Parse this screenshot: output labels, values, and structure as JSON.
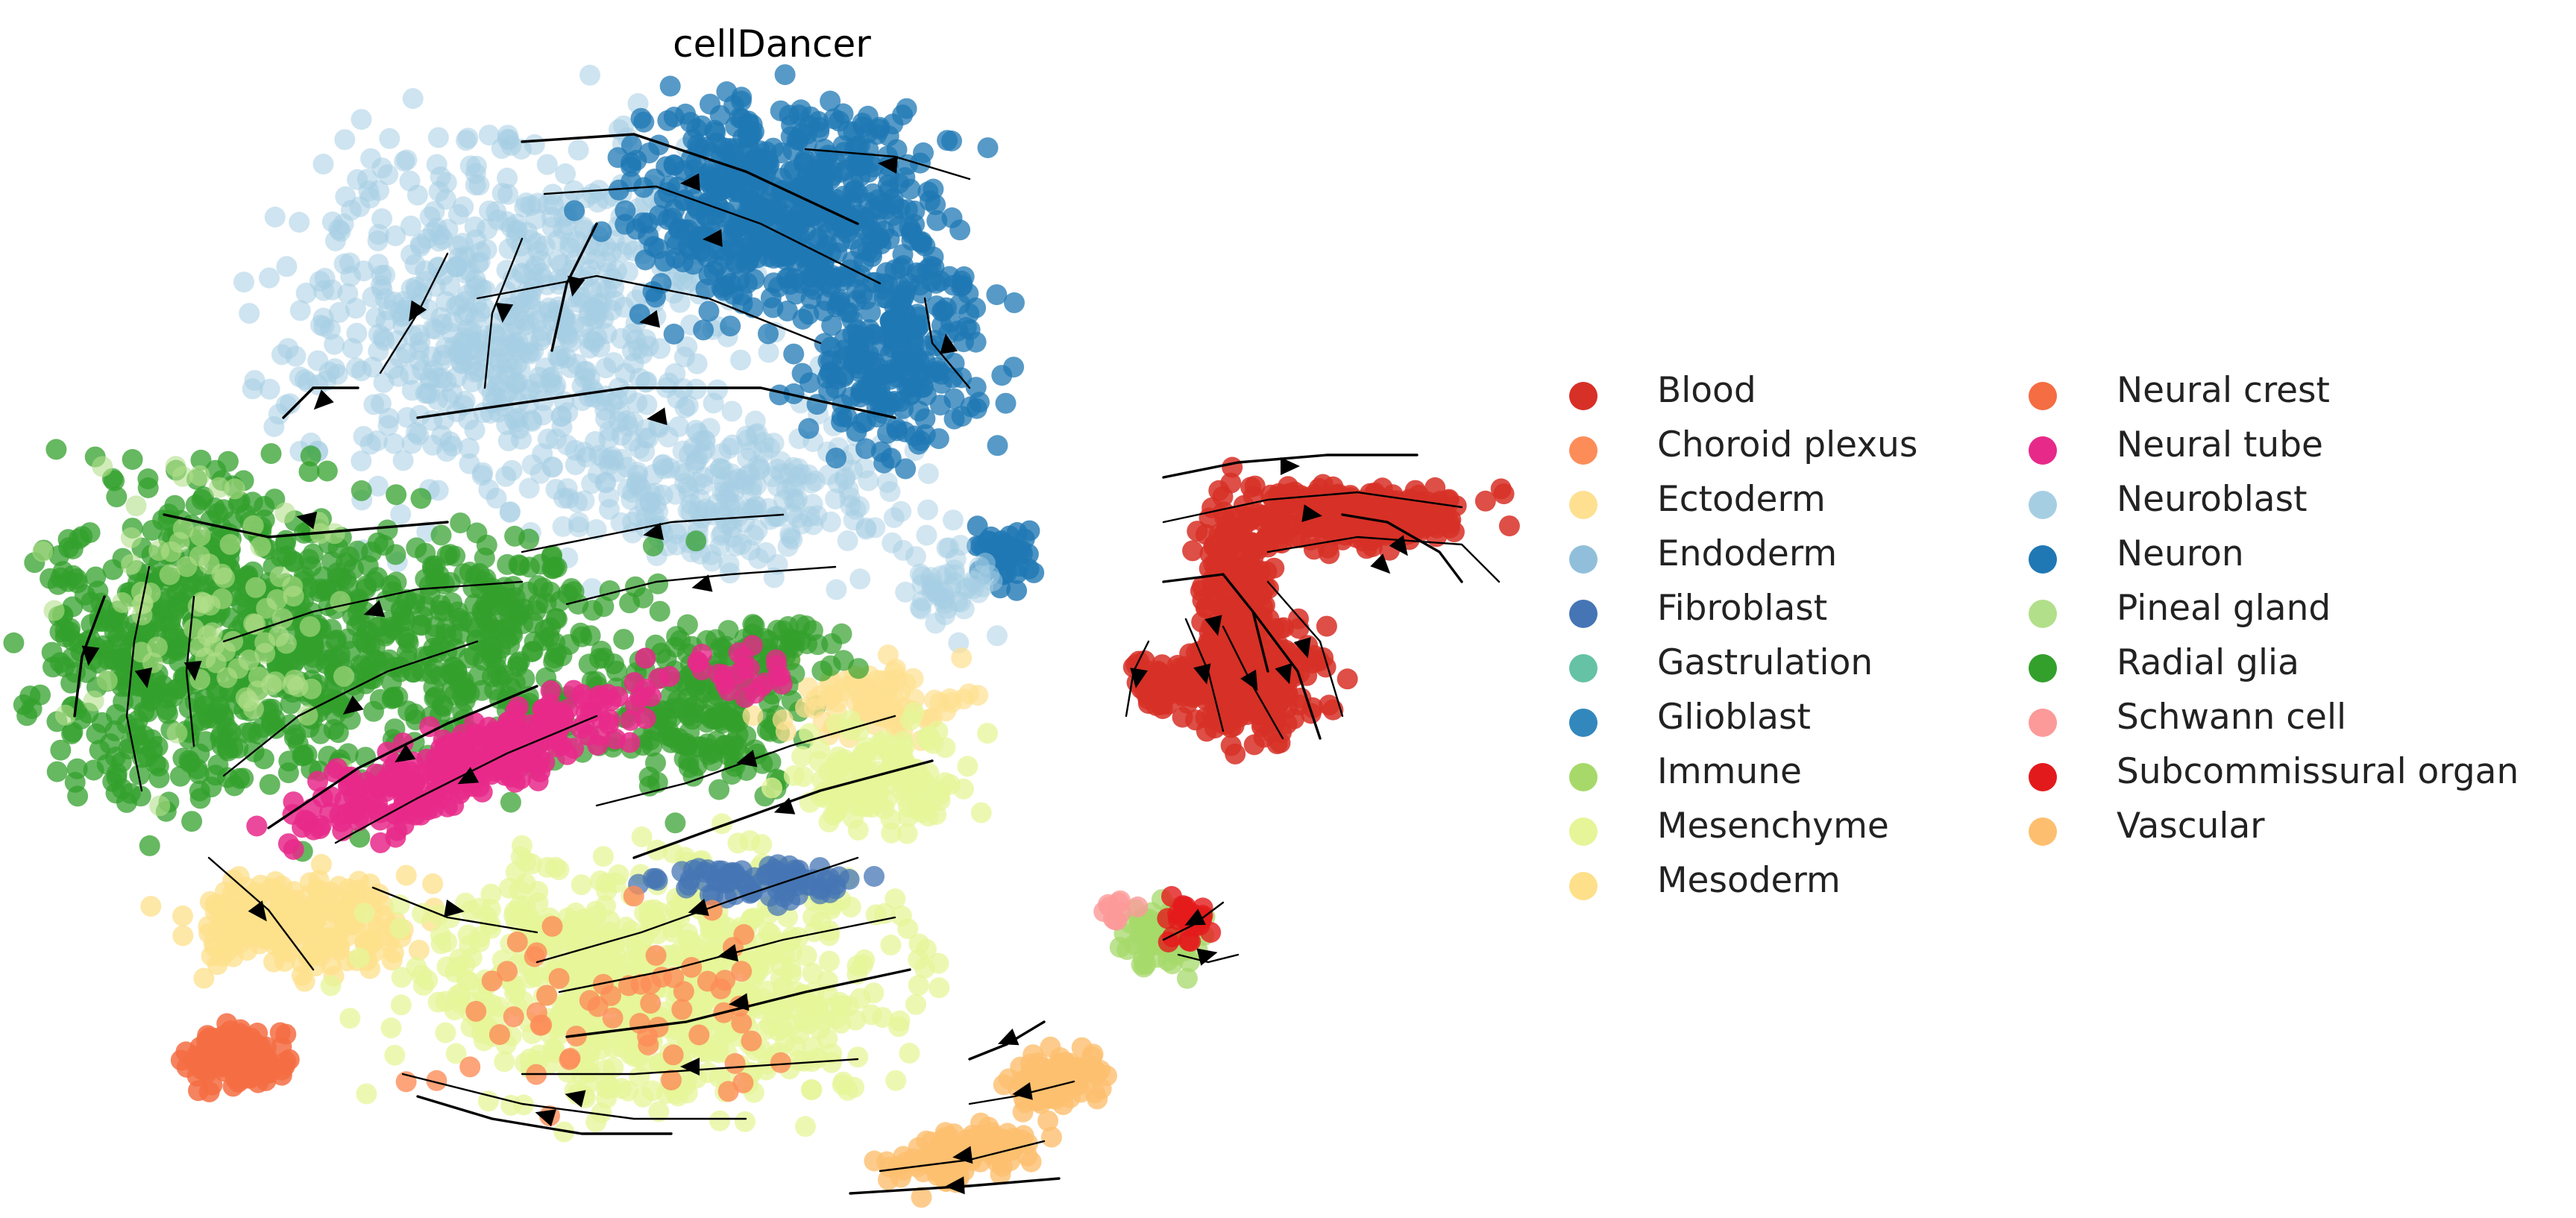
{
  "chart_data": {
    "type": "scatter",
    "title": "cellDancer",
    "xlabel": "",
    "ylabel": "",
    "grid": false,
    "axes_visible": false,
    "overlay": "velocity streamlines with arrowheads",
    "legend_position": "right, two columns",
    "categories": [
      {
        "name": "Blood",
        "color": "#d73027"
      },
      {
        "name": "Choroid plexus",
        "color": "#fc8d59"
      },
      {
        "name": "Ectoderm",
        "color": "#fee090"
      },
      {
        "name": "Endoderm",
        "color": "#91bfdb"
      },
      {
        "name": "Fibroblast",
        "color": "#4575b4"
      },
      {
        "name": "Gastrulation",
        "color": "#66c2a5"
      },
      {
        "name": "Glioblast",
        "color": "#3288bd"
      },
      {
        "name": "Immune",
        "color": "#a6d96a"
      },
      {
        "name": "Mesenchyme",
        "color": "#e6f598"
      },
      {
        "name": "Mesoderm",
        "color": "#fee08b"
      },
      {
        "name": "Neural crest",
        "color": "#f46d43"
      },
      {
        "name": "Neural tube",
        "color": "#e7298a"
      },
      {
        "name": "Neuroblast",
        "color": "#a6cee3"
      },
      {
        "name": "Neuron",
        "color": "#1f78b4"
      },
      {
        "name": "Pineal gland",
        "color": "#b2df8a"
      },
      {
        "name": "Radial glia",
        "color": "#33a02c"
      },
      {
        "name": "Schwann cell",
        "color": "#fb9a99"
      },
      {
        "name": "Subcommissural organ",
        "color": "#e31a1c"
      },
      {
        "name": "Vascular",
        "color": "#fdbf6f"
      }
    ]
  }
}
